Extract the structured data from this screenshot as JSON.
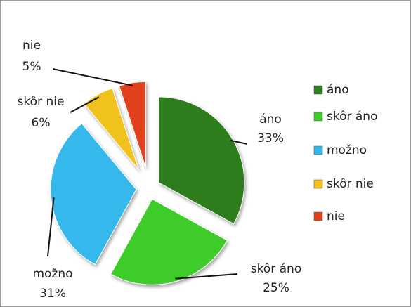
{
  "chart_data": {
    "type": "pie",
    "categories": [
      "áno",
      "skôr áno",
      "možno",
      "skôr nie",
      "nie"
    ],
    "values": [
      33,
      25,
      31,
      6,
      5
    ],
    "value_labels": [
      "33%",
      "25%",
      "31%",
      "6%",
      "5%"
    ],
    "colors": [
      "#2f7d1f",
      "#3ccc2c",
      "#35b8ec",
      "#f2c21a",
      "#e0401c"
    ],
    "legend": "right"
  }
}
